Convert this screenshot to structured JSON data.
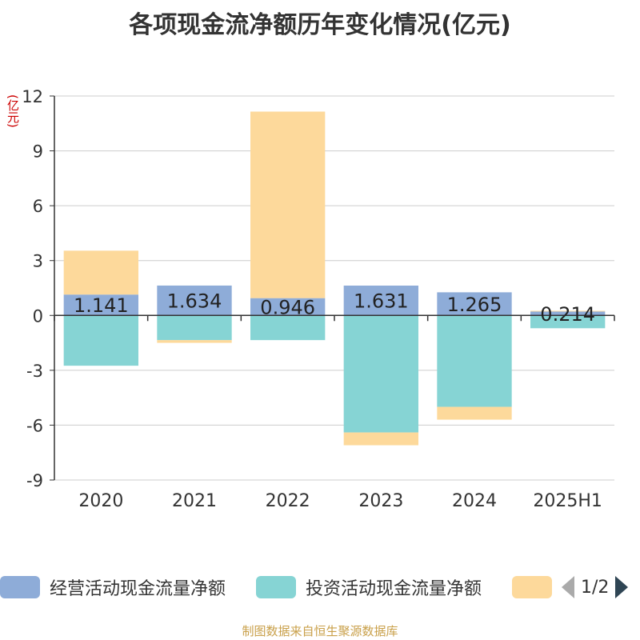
{
  "title": "各项现金流净额历年变化情况(亿元)",
  "unit_label": "(亿元)",
  "footer": "制图数据来自恒生聚源数据库",
  "pagination": {
    "text": "1/2"
  },
  "colors": {
    "operating": "#8eacd8",
    "investing": "#86d4d4",
    "financing": "#fdd99b"
  },
  "chart_data": {
    "type": "bar",
    "stacked": true,
    "categories": [
      "2020",
      "2021",
      "2022",
      "2023",
      "2024",
      "2025H1"
    ],
    "ylim": [
      -9,
      12
    ],
    "yticks": [
      -9,
      -6,
      -3,
      0,
      3,
      6,
      9,
      12
    ],
    "grid": true,
    "legend_position": "bottom",
    "series": [
      {
        "name": "经营活动现金流量净额",
        "values": [
          1.141,
          1.634,
          0.946,
          1.631,
          1.265,
          0.214
        ],
        "labels": [
          "1.141",
          "1.634",
          "0.946",
          "1.631",
          "1.265",
          "0.214"
        ]
      },
      {
        "name": "投资活动现金流量净额",
        "values": [
          -2.75,
          -1.35,
          -1.35,
          -6.4,
          -5.0,
          -0.7
        ]
      },
      {
        "name": "",
        "values": [
          2.4,
          -0.15,
          10.2,
          -0.7,
          -0.7,
          0.04
        ]
      }
    ]
  }
}
